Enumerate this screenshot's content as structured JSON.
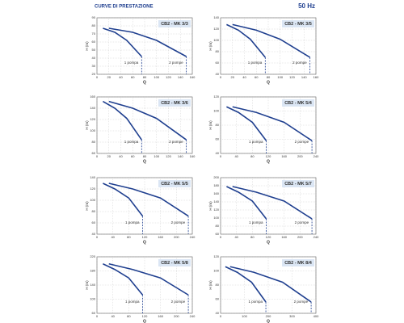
{
  "header": {
    "title": "CURVE DI PRESTAZIONE",
    "frequency": "50 Hz"
  },
  "chart_data": [
    {
      "type": "line",
      "title": "CB2 - MK 3/3",
      "xlabel": "Q",
      "ylabel": "H (m)",
      "grid": true,
      "xlim": [
        0,
        160
      ],
      "xticks": [
        0,
        20,
        40,
        60,
        80,
        100,
        120,
        140,
        160
      ],
      "ylim": [
        20,
        90
      ],
      "yticks": [
        20,
        30,
        40,
        50,
        60,
        70,
        80,
        90
      ],
      "series": [
        {
          "name": "1 pompa",
          "color": "#1f3f8f",
          "x": [
            10,
            30,
            50,
            75
          ],
          "values": [
            77,
            72,
            62,
            42
          ]
        },
        {
          "name": "2 pompe",
          "color": "#1f3f8f",
          "x": [
            20,
            60,
            100,
            150
          ],
          "values": [
            77,
            72,
            62,
            42
          ]
        }
      ]
    },
    {
      "type": "line",
      "title": "CB2 - MK 3/5",
      "xlabel": "Q",
      "ylabel": "H (m)",
      "grid": true,
      "xlim": [
        0,
        160
      ],
      "xticks": [
        0,
        20,
        40,
        60,
        80,
        100,
        120,
        140,
        160
      ],
      "ylim": [
        40,
        140
      ],
      "yticks": [
        40,
        60,
        80,
        100,
        120,
        140
      ],
      "series": [
        {
          "name": "1 pompa",
          "color": "#1f3f8f",
          "x": [
            10,
            30,
            50,
            75
          ],
          "values": [
            128,
            118,
            102,
            70
          ]
        },
        {
          "name": "2 pompe",
          "color": "#1f3f8f",
          "x": [
            20,
            60,
            100,
            150
          ],
          "values": [
            128,
            118,
            102,
            70
          ]
        }
      ]
    },
    {
      "type": "line",
      "title": "CB2 - MK 3/6",
      "xlabel": "Q",
      "ylabel": "H (m)",
      "grid": true,
      "xlim": [
        0,
        160
      ],
      "xticks": [
        0,
        20,
        40,
        60,
        80,
        100,
        120,
        140,
        160
      ],
      "ylim": [
        60,
        160
      ],
      "yticks": [
        60,
        80,
        100,
        120,
        140,
        160
      ],
      "series": [
        {
          "name": "1 pompa",
          "color": "#1f3f8f",
          "x": [
            10,
            30,
            50,
            75
          ],
          "values": [
            152,
            140,
            122,
            84
          ]
        },
        {
          "name": "2 pompe",
          "color": "#1f3f8f",
          "x": [
            20,
            60,
            100,
            150
          ],
          "values": [
            152,
            140,
            122,
            84
          ]
        }
      ]
    },
    {
      "type": "line",
      "title": "CB2 - MK 5/4",
      "xlabel": "Q",
      "ylabel": "H (m)",
      "grid": true,
      "xlim": [
        0,
        240
      ],
      "xticks": [
        0,
        40,
        80,
        120,
        160,
        200,
        240
      ],
      "ylim": [
        40,
        120
      ],
      "yticks": [
        40,
        60,
        80,
        100,
        120
      ],
      "series": [
        {
          "name": "1 pompa",
          "color": "#1f3f8f",
          "x": [
            15,
            45,
            80,
            115
          ],
          "values": [
            106,
            98,
            84,
            58
          ]
        },
        {
          "name": "2 pompe",
          "color": "#1f3f8f",
          "x": [
            30,
            90,
            160,
            230
          ],
          "values": [
            106,
            98,
            84,
            58
          ]
        }
      ]
    },
    {
      "type": "line",
      "title": "CB2 - MK 5/5",
      "xlabel": "Q",
      "ylabel": "H (m)",
      "grid": true,
      "xlim": [
        0,
        240
      ],
      "xticks": [
        0,
        40,
        80,
        120,
        160,
        200,
        240
      ],
      "ylim": [
        40,
        140
      ],
      "yticks": [
        40,
        60,
        80,
        100,
        120,
        140
      ],
      "series": [
        {
          "name": "1 pompa",
          "color": "#1f3f8f",
          "x": [
            15,
            45,
            80,
            115
          ],
          "values": [
            130,
            120,
            104,
            72
          ]
        },
        {
          "name": "2 pompe",
          "color": "#1f3f8f",
          "x": [
            30,
            90,
            160,
            230
          ],
          "values": [
            130,
            120,
            104,
            72
          ]
        }
      ]
    },
    {
      "type": "line",
      "title": "CB2 - MK 5/7",
      "xlabel": "Q",
      "ylabel": "H (m)",
      "grid": true,
      "xlim": [
        0,
        240
      ],
      "xticks": [
        0,
        40,
        80,
        120,
        160,
        200,
        240
      ],
      "ylim": [
        60,
        200
      ],
      "yticks": [
        60,
        80,
        100,
        120,
        140,
        160,
        180,
        200
      ],
      "series": [
        {
          "name": "1 pompa",
          "color": "#1f3f8f",
          "x": [
            15,
            45,
            80,
            115
          ],
          "values": [
            178,
            164,
            142,
            98
          ]
        },
        {
          "name": "2 pompe",
          "color": "#1f3f8f",
          "x": [
            30,
            90,
            160,
            230
          ],
          "values": [
            178,
            164,
            142,
            98
          ]
        }
      ]
    },
    {
      "type": "line",
      "title": "CB2 - MK 5/8",
      "xlabel": "Q",
      "ylabel": "H (m)",
      "grid": true,
      "xlim": [
        0,
        240
      ],
      "xticks": [
        0,
        40,
        80,
        120,
        160,
        200,
        240
      ],
      "ylim": [
        60,
        220
      ],
      "yticks": [
        60,
        100,
        140,
        180,
        220
      ],
      "series": [
        {
          "name": "1 pompa",
          "color": "#1f3f8f",
          "x": [
            15,
            45,
            80,
            115
          ],
          "values": [
            200,
            184,
            160,
            112
          ]
        },
        {
          "name": "2 pompe",
          "color": "#1f3f8f",
          "x": [
            30,
            90,
            160,
            230
          ],
          "values": [
            200,
            184,
            160,
            112
          ]
        }
      ]
    },
    {
      "type": "line",
      "title": "CB2 - MK 8/4",
      "xlabel": "Q",
      "ylabel": "H (m)",
      "grid": true,
      "xlim": [
        0,
        400
      ],
      "xticks": [
        0,
        100,
        200,
        300,
        400
      ],
      "ylim": [
        40,
        120
      ],
      "yticks": [
        40,
        60,
        80,
        100,
        120
      ],
      "series": [
        {
          "name": "1 pompa",
          "color": "#1f3f8f",
          "x": [
            20,
            70,
            130,
            190
          ],
          "values": [
            106,
            98,
            84,
            56
          ]
        },
        {
          "name": "2 pompe",
          "color": "#1f3f8f",
          "x": [
            40,
            140,
            260,
            380
          ],
          "values": [
            106,
            98,
            84,
            56
          ]
        }
      ]
    }
  ]
}
